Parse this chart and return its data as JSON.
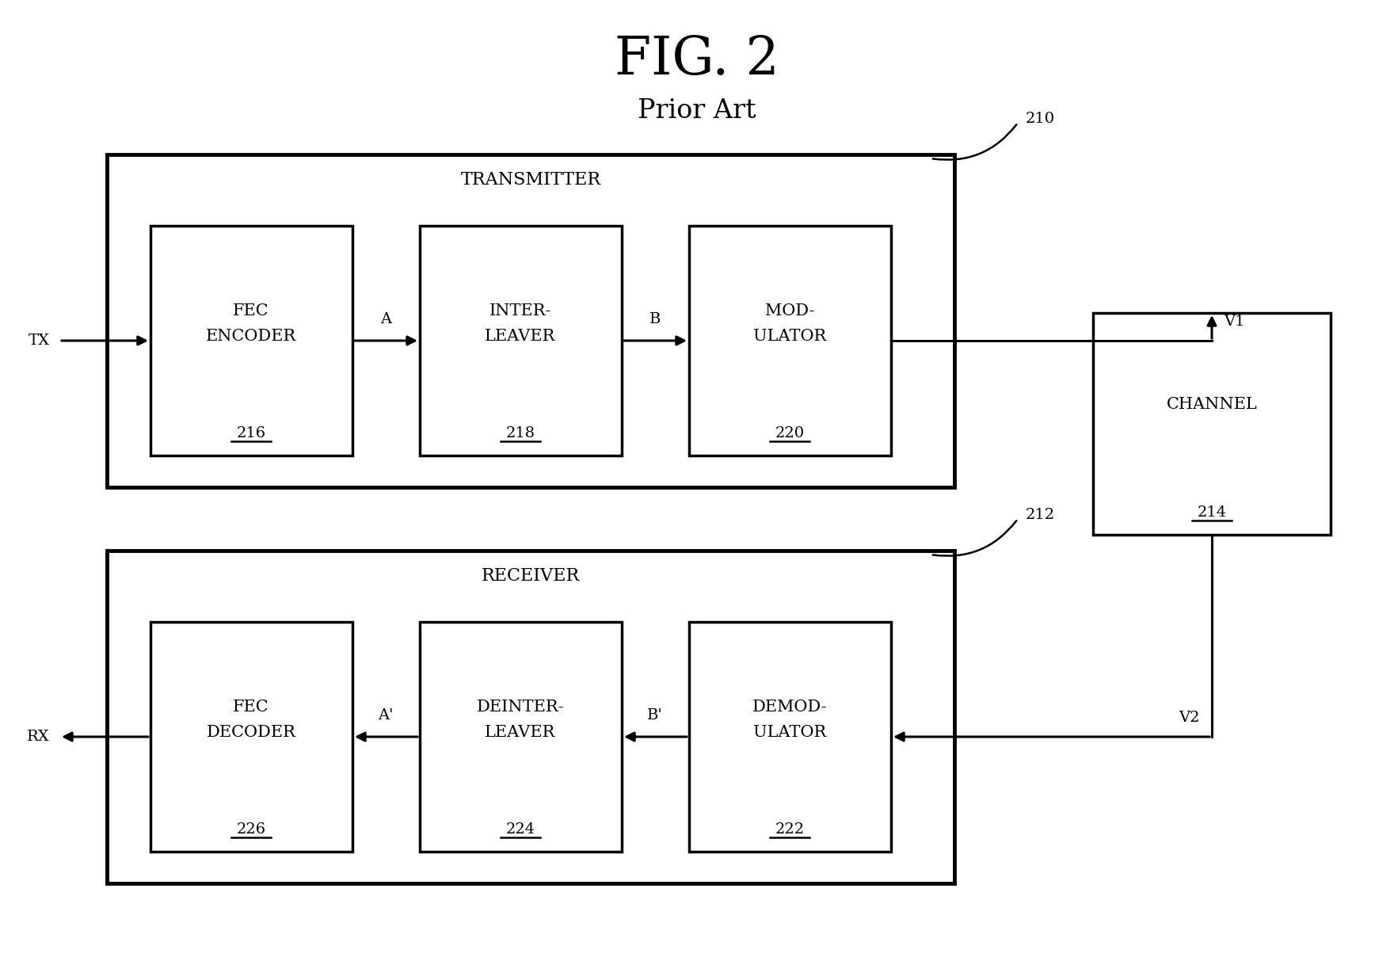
{
  "title": "FIG. 2",
  "subtitle": "Prior Art",
  "background": "#ffffff",
  "transmitter_label": "TRANSMITTER",
  "receiver_label": "RECEIVER",
  "transmitter_number": "210",
  "receiver_number": "212",
  "tx_label": "TX",
  "rx_label": "RX",
  "v1_label": "V1",
  "v2_label": "V2",
  "channel_text": "CHANNEL",
  "channel_number": "214",
  "fec_enc_lines": [
    "FEC",
    "ENCODER"
  ],
  "fec_enc_number": "216",
  "interleaver_lines": [
    "INTER-",
    "LEAVER"
  ],
  "interleaver_number": "218",
  "modulator_lines": [
    "MOD-",
    "ULATOR"
  ],
  "modulator_number": "220",
  "fec_dec_lines": [
    "FEC",
    "DECODER"
  ],
  "fec_dec_number": "226",
  "deinterleaver_lines": [
    "DEINTER-",
    "LEAVER"
  ],
  "deinterleaver_number": "224",
  "demodulator_lines": [
    "DEMOD-",
    "ULATOR"
  ],
  "demodulator_number": "222",
  "label_A": "A",
  "label_B": "B",
  "label_Ap": "A'",
  "label_Bp": "B'",
  "fig_fontsize": 48,
  "subtitle_fontsize": 24,
  "label_fontsize": 14,
  "block_fontsize": 15,
  "number_fontsize": 14,
  "section_fontsize": 16
}
